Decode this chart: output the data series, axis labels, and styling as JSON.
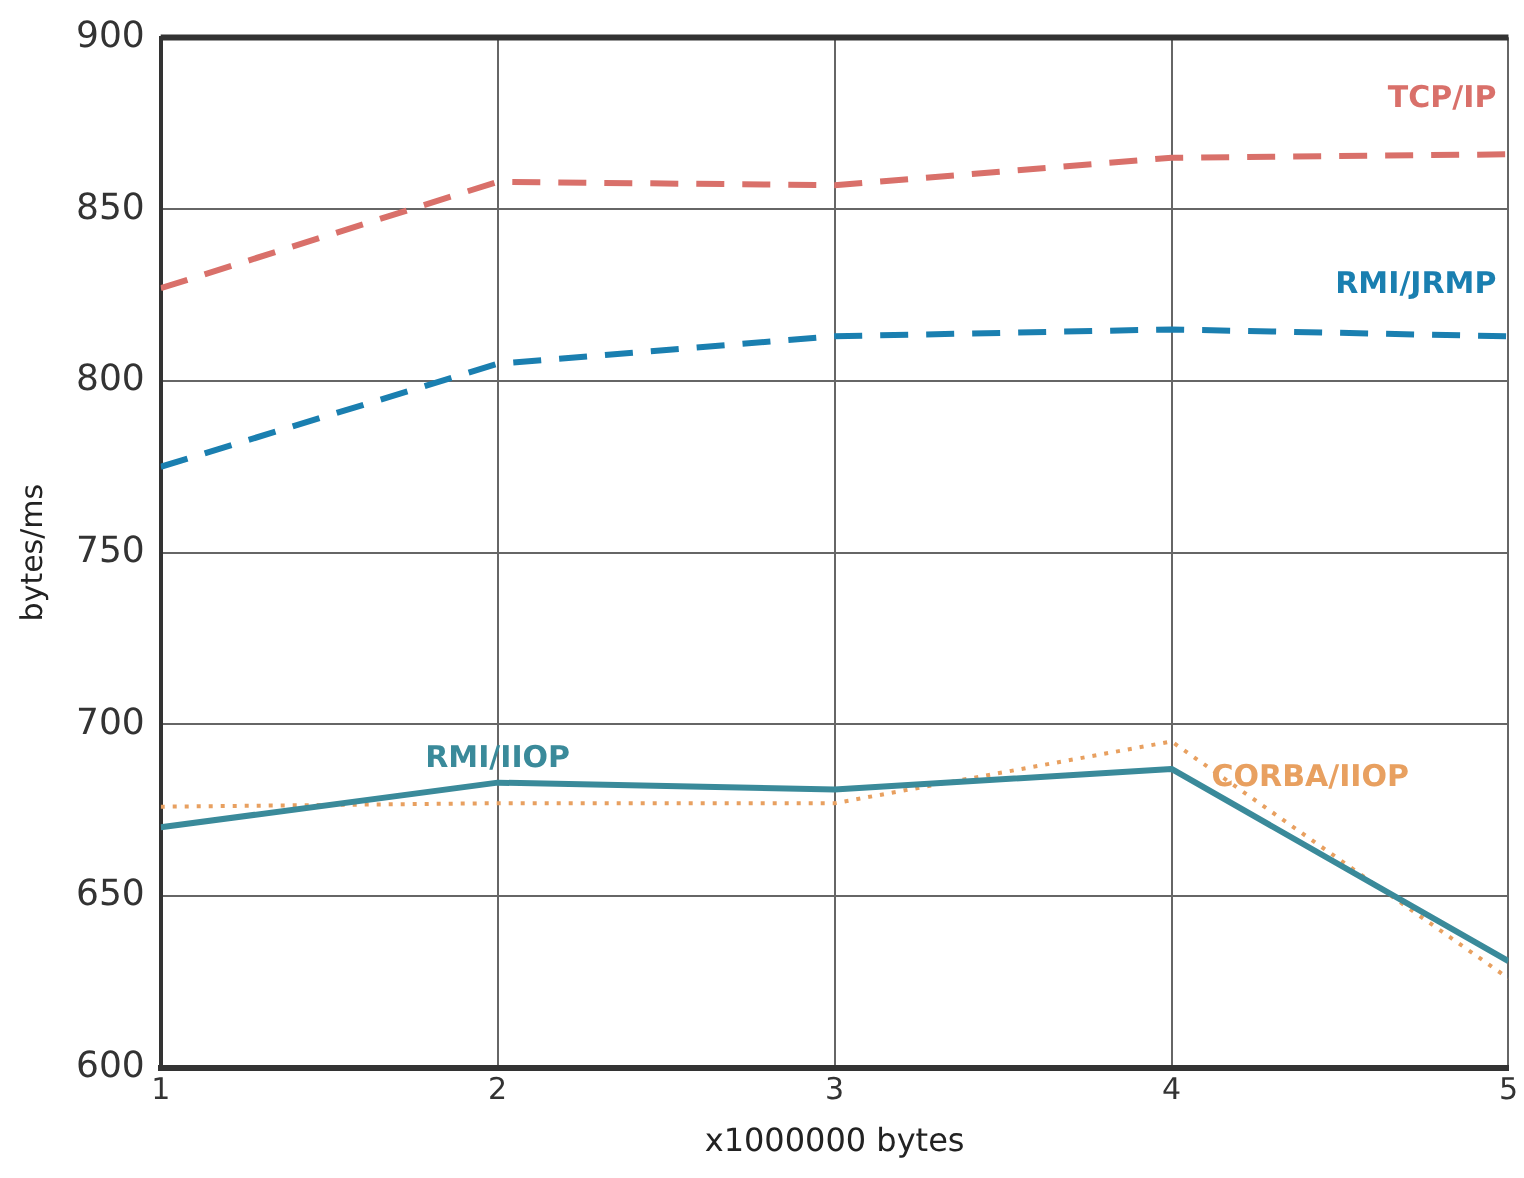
{
  "chart_data": {
    "type": "line",
    "xlabel": "x1000000 bytes",
    "ylabel": "bytes/ms",
    "x": [
      1,
      2,
      3,
      4,
      5
    ],
    "series": [
      {
        "name": "TCP/IP",
        "color": "#d9706a",
        "line_style": "dashed",
        "values": [
          827,
          858,
          857,
          865,
          866
        ]
      },
      {
        "name": "RMI/JRMP",
        "color": "#1a7fb0",
        "line_style": "dashed",
        "values": [
          775,
          805,
          813,
          815,
          813
        ]
      },
      {
        "name": "RMI/IIOP",
        "color": "#3a8a9a",
        "line_style": "solid",
        "values": [
          670,
          683,
          681,
          687,
          631
        ]
      },
      {
        "name": "CORBA/IIOP",
        "color": "#e8a060",
        "line_style": "dotted",
        "values": [
          676,
          677,
          677,
          695,
          626
        ]
      }
    ],
    "xlim": [
      1,
      5
    ],
    "xticks": [
      1,
      2,
      3,
      4,
      5
    ],
    "ylim": [
      600,
      900
    ],
    "yticks": [
      600,
      650,
      700,
      750,
      800,
      850,
      900
    ],
    "grid": true,
    "legend": false,
    "marker": "none"
  }
}
